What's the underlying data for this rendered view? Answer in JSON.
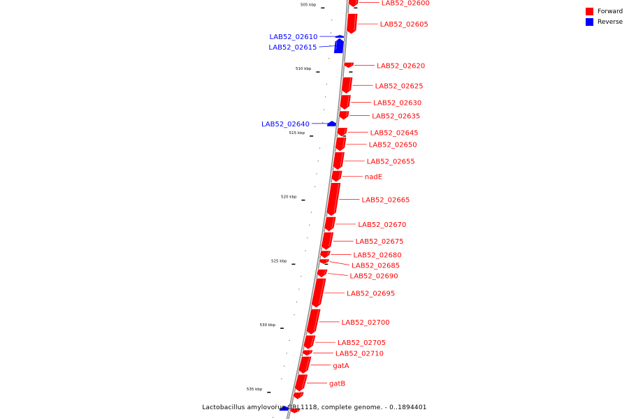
{
  "legend": {
    "forward": {
      "label": "Forward",
      "color": "#ff0000"
    },
    "reverse": {
      "label": "Reverse",
      "color": "#0000ff"
    }
  },
  "caption": "Lactobacillus amylovorus GRL1118, complete genome. - 0..1894401",
  "ticks": [
    "505 kbp",
    "510 kbp",
    "515 kbp",
    "520 kbp",
    "525 kbp",
    "530 kbp",
    "535 kbp"
  ],
  "genes": [
    {
      "name": "LAB52_02600",
      "strand": "forward",
      "start": 504.25,
      "end": 505.0
    },
    {
      "name": "LAB52_02605",
      "strand": "forward",
      "start": 505.5,
      "end": 507.1
    },
    {
      "name": "LAB52_02610",
      "strand": "reverse",
      "start": 507.15,
      "end": 507.4
    },
    {
      "name": "LAB52_02615",
      "strand": "reverse",
      "start": 507.4,
      "end": 508.6
    },
    {
      "name": "LAB52_02620",
      "strand": "forward",
      "start": 509.3,
      "end": 509.75
    },
    {
      "name": "LAB52_02625",
      "strand": "forward",
      "start": 510.45,
      "end": 511.75
    },
    {
      "name": "LAB52_02630",
      "strand": "forward",
      "start": 511.85,
      "end": 513.0
    },
    {
      "name": "LAB52_02635",
      "strand": "forward",
      "start": 513.1,
      "end": 513.8
    },
    {
      "name": "LAB52_02640",
      "strand": "reverse",
      "start": 513.85,
      "end": 514.3
    },
    {
      "name": "LAB52_02645",
      "strand": "forward",
      "start": 514.4,
      "end": 515.1
    },
    {
      "name": "LAB52_02650",
      "strand": "forward",
      "start": 515.15,
      "end": 516.25
    },
    {
      "name": "LAB52_02655",
      "strand": "forward",
      "start": 516.3,
      "end": 517.7
    },
    {
      "name": "nadE",
      "strand": "forward",
      "start": 517.75,
      "end": 518.65
    },
    {
      "name": "LAB52_02665",
      "strand": "forward",
      "start": 518.7,
      "end": 521.3
    },
    {
      "name": "LAB52_02670",
      "strand": "forward",
      "start": 521.35,
      "end": 522.5
    },
    {
      "name": "LAB52_02675",
      "strand": "forward",
      "start": 522.55,
      "end": 523.95
    },
    {
      "name": "LAB52_02680",
      "strand": "forward",
      "start": 524.0,
      "end": 524.6
    },
    {
      "name": "LAB52_02685",
      "strand": "forward",
      "start": 524.65,
      "end": 525.05
    },
    {
      "name": "LAB52_02690",
      "strand": "forward",
      "start": 525.45,
      "end": 526.1
    },
    {
      "name": "LAB52_02695",
      "strand": "forward",
      "start": 526.15,
      "end": 528.45
    },
    {
      "name": "LAB52_02700",
      "strand": "forward",
      "start": 528.55,
      "end": 530.55
    },
    {
      "name": "LAB52_02705",
      "strand": "forward",
      "start": 530.6,
      "end": 531.7
    },
    {
      "name": "LAB52_02710",
      "strand": "forward",
      "start": 531.75,
      "end": 532.2
    },
    {
      "name": "gatA",
      "strand": "forward",
      "start": 532.25,
      "end": 533.6
    },
    {
      "name": "gatB",
      "strand": "forward",
      "start": 533.65,
      "end": 535.0
    },
    {
      "name": "",
      "strand": "forward",
      "start": 535.05,
      "end": 535.6
    },
    {
      "name": "",
      "strand": "reverse",
      "start": 536.1,
      "end": 536.5
    },
    {
      "name": "",
      "strand": "forward",
      "start": 536.3,
      "end": 536.7
    }
  ]
}
